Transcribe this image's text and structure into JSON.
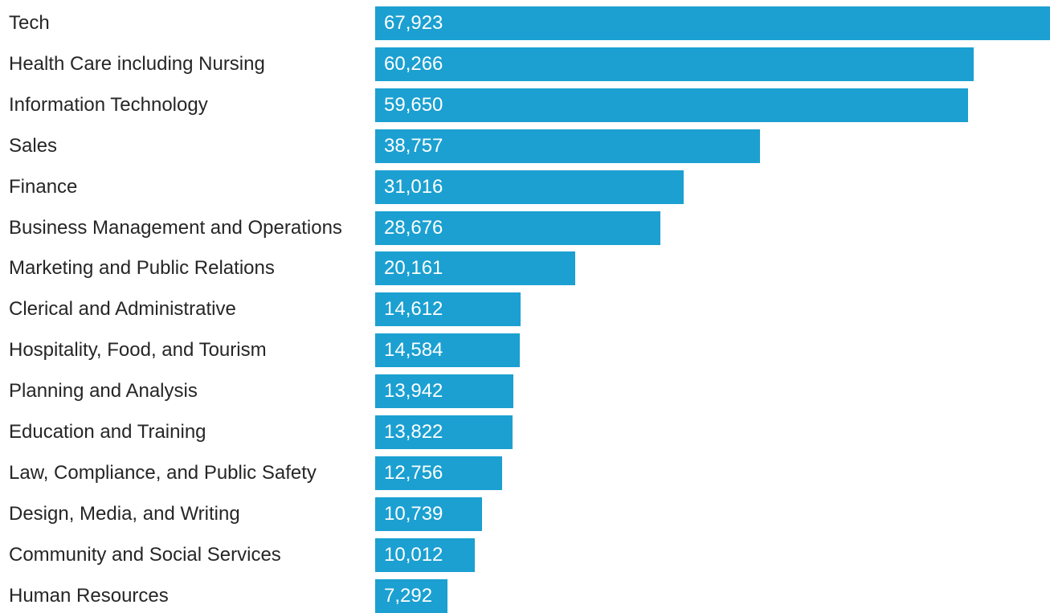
{
  "chart_data": {
    "type": "bar",
    "orientation": "horizontal",
    "categories": [
      "Tech",
      "Health Care including Nursing",
      "Information Technology",
      "Sales",
      "Finance",
      "Business Management and Operations",
      "Marketing and Public Relations",
      "Clerical and Administrative",
      "Hospitality, Food, and Tourism",
      "Planning and Analysis",
      "Education and Training",
      "Law, Compliance, and Public Safety",
      "Design, Media, and Writing",
      "Community and Social Services",
      "Human Resources"
    ],
    "values": [
      67923,
      60266,
      59650,
      38757,
      31016,
      28676,
      20161,
      14612,
      14584,
      13942,
      13822,
      12756,
      10739,
      10012,
      7292
    ],
    "value_labels": [
      "67,923",
      "60,266",
      "59,650",
      "38,757",
      "31,016",
      "28,676",
      "20,161",
      "14,612",
      "14,584",
      "13,942",
      "13,822",
      "12,756",
      "10,739",
      "10,012",
      "7,292"
    ],
    "xlim": [
      0,
      67923
    ],
    "grid": false,
    "legend": "none",
    "bar_color": "#1ba0d1",
    "label_color": "#262626",
    "value_label_color": "#ffffff"
  }
}
